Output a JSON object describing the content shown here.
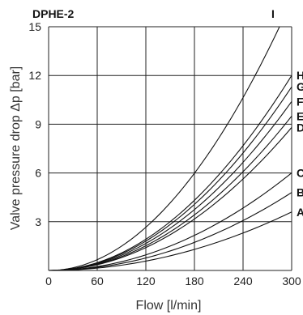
{
  "chart_data": {
    "type": "line",
    "title": "DPHE-2",
    "xlabel": "Flow [l/min]",
    "ylabel": "Valve pressure drop  Δp [bar]",
    "xlim": [
      0,
      300
    ],
    "ylim": [
      0,
      15
    ],
    "xticks": [
      "0",
      "60",
      "120",
      "180",
      "240",
      "300"
    ],
    "yticks": [
      "3",
      "6",
      "9",
      "12",
      "15"
    ],
    "grid": true,
    "series": [
      {
        "name": "I",
        "x": [
          0,
          60,
          120,
          180,
          240,
          285
        ],
        "y": [
          0,
          0.67,
          2.66,
          5.98,
          10.64,
          15.0
        ]
      },
      {
        "name": "H",
        "x": [
          0,
          60,
          120,
          180,
          240,
          300
        ],
        "y": [
          0,
          0.48,
          1.92,
          4.32,
          7.68,
          12.0
        ]
      },
      {
        "name": "G",
        "x": [
          0,
          60,
          120,
          180,
          240,
          300
        ],
        "y": [
          0,
          0.45,
          1.81,
          4.07,
          7.23,
          11.3
        ]
      },
      {
        "name": "F",
        "x": [
          0,
          60,
          120,
          180,
          240,
          300
        ],
        "y": [
          0,
          0.42,
          1.66,
          3.74,
          6.66,
          10.4
        ]
      },
      {
        "name": "E",
        "x": [
          0,
          60,
          120,
          180,
          240,
          300
        ],
        "y": [
          0,
          0.38,
          1.52,
          3.42,
          6.08,
          9.5
        ]
      },
      {
        "name": "D",
        "x": [
          0,
          60,
          120,
          180,
          240,
          300
        ],
        "y": [
          0,
          0.35,
          1.41,
          3.17,
          5.63,
          8.8
        ]
      },
      {
        "name": "C",
        "x": [
          0,
          60,
          120,
          180,
          240,
          300
        ],
        "y": [
          0,
          0.24,
          0.96,
          2.16,
          3.84,
          6.0
        ]
      },
      {
        "name": "B",
        "x": [
          0,
          60,
          120,
          180,
          240,
          300
        ],
        "y": [
          0,
          0.19,
          0.77,
          1.73,
          3.07,
          4.8
        ]
      },
      {
        "name": "A",
        "x": [
          0,
          60,
          120,
          180,
          240,
          300
        ],
        "y": [
          0,
          0.14,
          0.58,
          1.3,
          2.3,
          3.6
        ]
      }
    ]
  }
}
